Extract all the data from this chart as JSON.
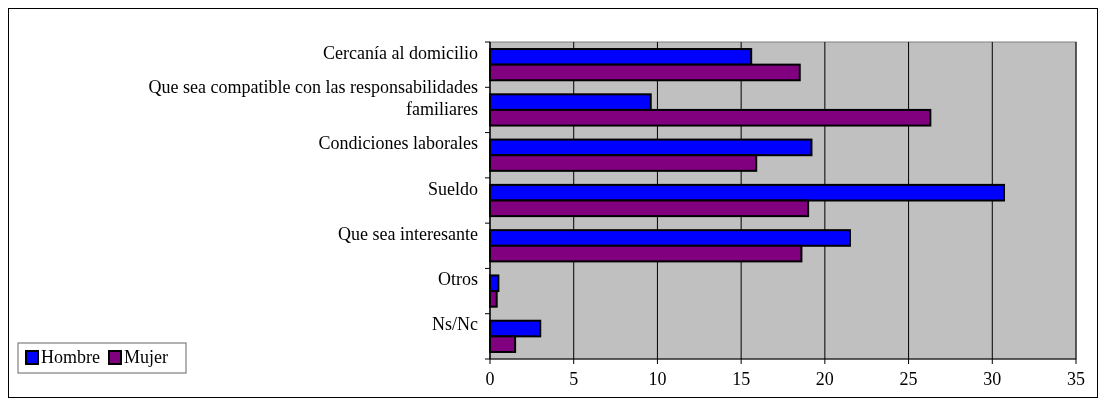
{
  "chart_data": {
    "type": "bar",
    "orientation": "horizontal",
    "categories": [
      "Cercanía al domicilio",
      "Que sea compatible con las responsabilidades familiares",
      "Condiciones laborales",
      "Sueldo",
      "Que sea interesante",
      "Otros",
      "Ns/Nc"
    ],
    "series": [
      {
        "name": "Hombre",
        "color": "#0000ff",
        "values": [
          15.6,
          9.6,
          19.2,
          30.7,
          21.5,
          0.5,
          3.0
        ]
      },
      {
        "name": "Mujer",
        "color": "#800080",
        "values": [
          18.5,
          26.3,
          15.9,
          19.0,
          18.6,
          0.4,
          1.5
        ]
      }
    ],
    "xlim": [
      0,
      35
    ],
    "xticks": [
      0,
      5,
      10,
      15,
      20,
      25,
      30,
      35
    ],
    "grid": "x",
    "legend": "bottom left"
  }
}
